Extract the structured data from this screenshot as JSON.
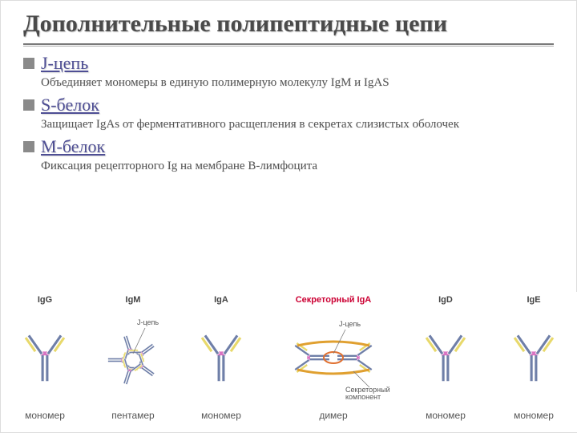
{
  "title": "Дополнительные полипептидные цепи",
  "sections": [
    {
      "heading": "J-цепь",
      "desc": "Объединяет мономеры в единую полимерную молекулу IgM и IgAS"
    },
    {
      "heading": "S-белок",
      "desc": "Защищает IgAs от ферментативного расщепления в секретах слизистых оболочек"
    },
    {
      "heading": "М-белок",
      "desc": "Фиксация рецепторного Ig на мембране В-лимфоцита"
    }
  ],
  "diagrams": [
    {
      "top": "IgG",
      "bottom": "мономер",
      "type": "mono",
      "red": false
    },
    {
      "top": "IgM",
      "bottom": "пентамер",
      "type": "penta",
      "red": false
    },
    {
      "top": "IgA",
      "bottom": "мономер",
      "type": "mono",
      "red": false
    },
    {
      "top": "Секреторный IgA",
      "bottom": "димер",
      "type": "dimer",
      "red": true
    },
    {
      "top": "IgD",
      "bottom": "мономер",
      "type": "mono",
      "red": false
    },
    {
      "top": "IgE",
      "bottom": "мономер",
      "type": "mono",
      "red": false
    }
  ],
  "dimer_labels": {
    "jchain": "J-цепь",
    "secretory": "Секреторный\nкомпонент"
  },
  "penta_label": "J-цепь",
  "colors": {
    "heavy": "#6f7fa8",
    "light": "#e8d96b",
    "hinge": "#d973c2",
    "jchain": "#e07030",
    "secretory": "#e0a030"
  }
}
